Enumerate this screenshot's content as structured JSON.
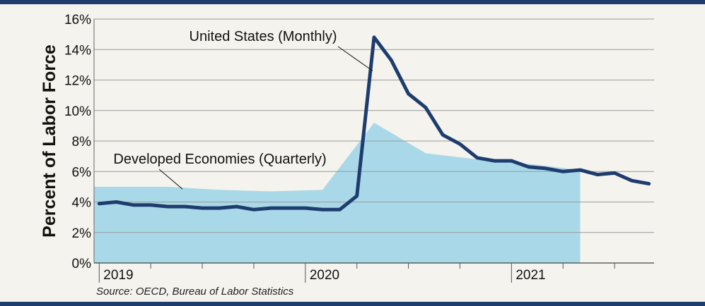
{
  "chart_data": {
    "type": "line",
    "ylabel": "Percent of Labor Force",
    "ylim": [
      0,
      16
    ],
    "yticks": [
      0,
      2,
      4,
      6,
      8,
      10,
      12,
      14,
      16
    ],
    "ytick_labels": [
      "0%",
      "2%",
      "4%",
      "6%",
      "8%",
      "10%",
      "12%",
      "14%",
      "16%"
    ],
    "x_range": [
      "2019-01",
      "2021-09"
    ],
    "xtick_labels": [
      "2019",
      "2020",
      "2021"
    ],
    "grid": true,
    "source": "Source: OECD, Bureau of Labor Statistics",
    "colors": {
      "line": "#1e3d6e",
      "area": "#a9d9e8",
      "grid": "#9a9a9a",
      "frame": "#1e3d6e"
    },
    "series": [
      {
        "name": "United States (Monthly)",
        "kind": "line",
        "x": [
          "2019-01",
          "2019-02",
          "2019-03",
          "2019-04",
          "2019-05",
          "2019-06",
          "2019-07",
          "2019-08",
          "2019-09",
          "2019-10",
          "2019-11",
          "2019-12",
          "2020-01",
          "2020-02",
          "2020-03",
          "2020-04",
          "2020-05",
          "2020-06",
          "2020-07",
          "2020-08",
          "2020-09",
          "2020-10",
          "2020-11",
          "2020-12",
          "2021-01",
          "2021-02",
          "2021-03",
          "2021-04",
          "2021-05",
          "2021-06",
          "2021-07",
          "2021-08",
          "2021-09"
        ],
        "values": [
          3.9,
          4.0,
          3.8,
          3.8,
          3.7,
          3.7,
          3.6,
          3.6,
          3.7,
          3.5,
          3.6,
          3.6,
          3.6,
          3.5,
          3.5,
          4.4,
          14.8,
          13.3,
          11.1,
          10.2,
          8.4,
          7.8,
          6.9,
          6.7,
          6.7,
          6.3,
          6.2,
          6.0,
          6.1,
          5.8,
          5.9,
          5.4,
          5.2
        ]
      },
      {
        "name": "Developed Economies (Quarterly)",
        "kind": "area",
        "x": [
          "2019Q1",
          "2019Q2",
          "2019Q3",
          "2019Q4",
          "2020Q1",
          "2020Q2",
          "2020Q3",
          "2020Q4",
          "2021Q1",
          "2021Q2"
        ],
        "values": [
          5.0,
          5.0,
          4.8,
          4.7,
          4.8,
          9.2,
          7.2,
          6.8,
          6.5,
          6.1
        ]
      }
    ]
  }
}
